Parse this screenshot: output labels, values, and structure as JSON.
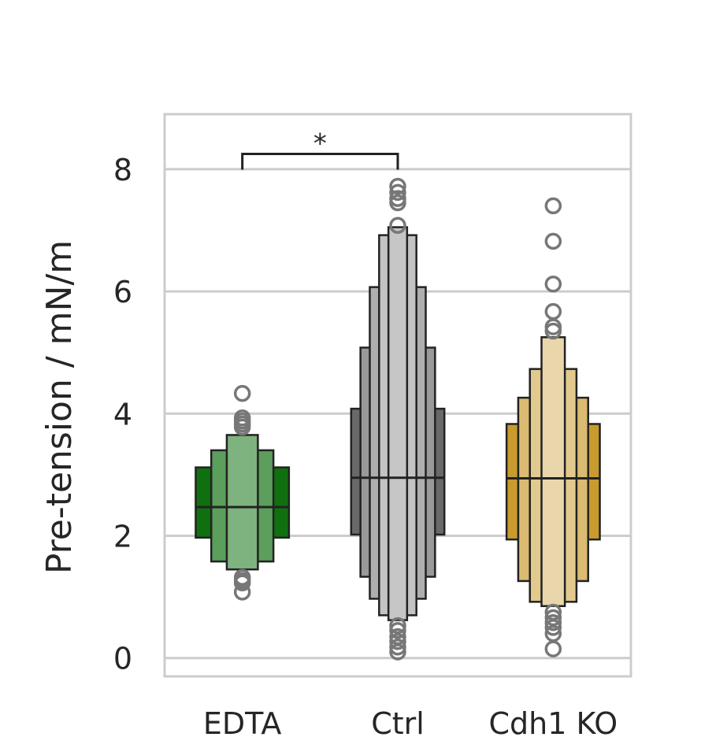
{
  "chart_data": {
    "type": "boxen",
    "title": "",
    "xlabel": "",
    "ylabel": "Pre-tension  /  mN/m",
    "ylim": [
      -0.3,
      8.9
    ],
    "yticks": [
      "0",
      "2",
      "4",
      "6",
      "8"
    ],
    "ytick_values": [
      0,
      2,
      4,
      6,
      8
    ],
    "grid": true,
    "categories": [
      "EDTA",
      "Ctrl",
      "Cdh1 KO"
    ],
    "series": [
      {
        "category": "EDTA",
        "color": "#107010",
        "median": 2.47,
        "letter_values": [
          {
            "lower": 1.97,
            "upper": 3.12
          },
          {
            "lower": 1.58,
            "upper": 3.4
          },
          {
            "lower": 1.45,
            "upper": 3.65
          }
        ],
        "outliers": [
          4.33,
          3.93,
          3.88,
          3.83,
          3.78,
          1.32,
          1.27,
          1.23,
          1.08
        ]
      },
      {
        "category": "Ctrl",
        "color": "#696969",
        "median": 2.95,
        "letter_values": [
          {
            "lower": 2.02,
            "upper": 4.08
          },
          {
            "lower": 1.33,
            "upper": 5.08
          },
          {
            "lower": 0.97,
            "upper": 6.07
          },
          {
            "lower": 0.7,
            "upper": 6.92
          },
          {
            "lower": 0.62,
            "upper": 7.05
          }
        ],
        "outliers": [
          7.72,
          7.62,
          7.52,
          7.45,
          7.08,
          0.53,
          0.45,
          0.35,
          0.27,
          0.18,
          0.1
        ]
      },
      {
        "category": "Cdh1 KO",
        "color": "#c99b2e",
        "median": 2.94,
        "letter_values": [
          {
            "lower": 1.94,
            "upper": 3.83
          },
          {
            "lower": 1.26,
            "upper": 4.26
          },
          {
            "lower": 0.92,
            "upper": 4.73
          },
          {
            "lower": 0.85,
            "upper": 5.25
          }
        ],
        "outliers": [
          7.4,
          6.82,
          6.12,
          5.67,
          5.42,
          5.35,
          0.75,
          0.66,
          0.58,
          0.5,
          0.4,
          0.15
        ]
      }
    ],
    "annotations": [
      {
        "type": "significance",
        "from": "EDTA",
        "to": "Ctrl",
        "y": 8.25,
        "text": "*"
      }
    ]
  }
}
